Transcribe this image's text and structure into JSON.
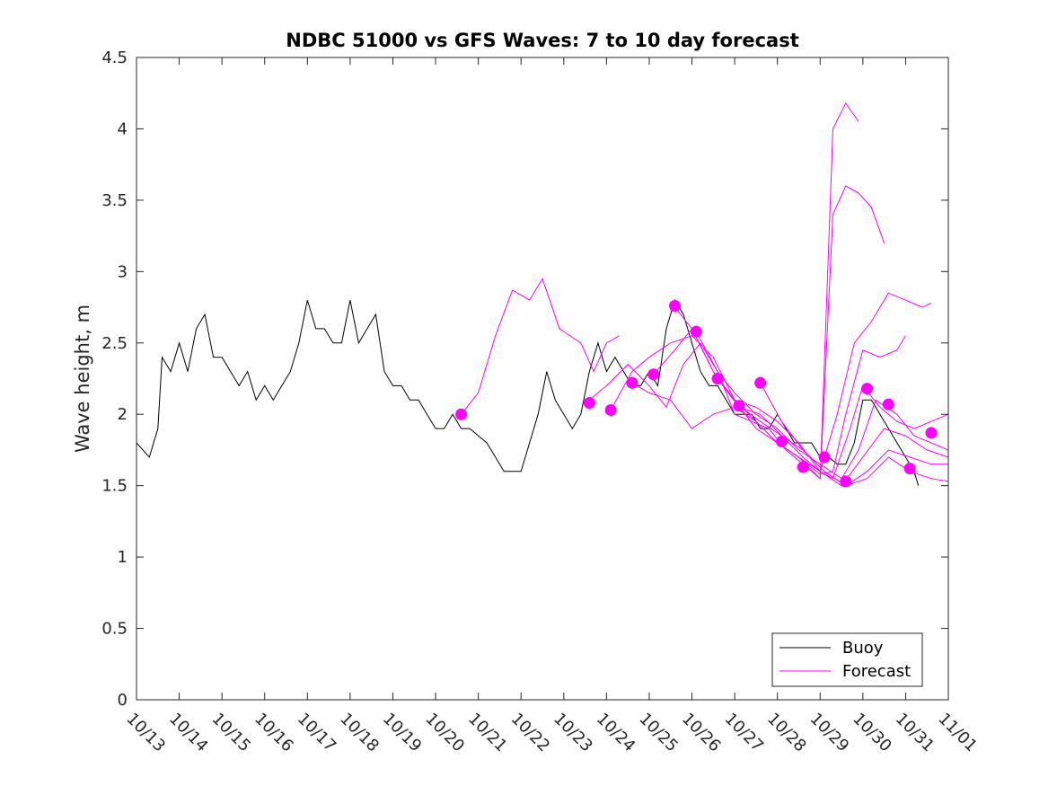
{
  "chart_data": {
    "type": "line",
    "title": "NDBC 51000 vs GFS Waves: 7 to 10 day forecast",
    "xlabel": "",
    "ylabel": "Wave height, m",
    "xlim": [
      13,
      32
    ],
    "ylim": [
      0,
      4.5
    ],
    "y_ticks": [
      0,
      0.5,
      1,
      1.5,
      2,
      2.5,
      3,
      3.5,
      4,
      4.5
    ],
    "y_tick_labels": [
      "0",
      "0.5",
      "1",
      "1.5",
      "2",
      "2.5",
      "3",
      "3.5",
      "4",
      "4.5"
    ],
    "x_ticks": [
      13,
      14,
      15,
      16,
      17,
      18,
      19,
      20,
      21,
      22,
      23,
      24,
      25,
      26,
      27,
      28,
      29,
      30,
      31,
      32
    ],
    "x_tick_labels": [
      "10/13",
      "10/14",
      "10/15",
      "10/16",
      "10/17",
      "10/18",
      "10/19",
      "10/20",
      "10/21",
      "10/22",
      "10/23",
      "10/24",
      "10/25",
      "10/26",
      "10/27",
      "10/28",
      "10/29",
      "10/30",
      "10/31",
      "11/01"
    ],
    "x_units_note": "day of October (32 = 11/01)",
    "legend": {
      "position": "bottom-right",
      "entries": [
        "Buoy",
        "Forecast"
      ]
    },
    "colors": {
      "buoy": "#000000",
      "forecast": "#ff00ff",
      "axes": "#262626"
    },
    "series": [
      {
        "name": "Buoy",
        "x": [
          13.0,
          13.3,
          13.5,
          13.6,
          13.8,
          14.0,
          14.2,
          14.4,
          14.6,
          14.8,
          15.0,
          15.2,
          15.4,
          15.6,
          15.8,
          16.0,
          16.2,
          16.4,
          16.6,
          16.8,
          17.0,
          17.2,
          17.4,
          17.6,
          17.8,
          18.0,
          18.2,
          18.4,
          18.6,
          18.8,
          19.0,
          19.2,
          19.4,
          19.6,
          19.8,
          20.0,
          20.2,
          20.4,
          20.6,
          20.8,
          21.0,
          21.2,
          21.4,
          21.6,
          21.8,
          22.0,
          22.2,
          22.4,
          22.6,
          22.8,
          23.0,
          23.2,
          23.4,
          23.6,
          23.8,
          24.0,
          24.2,
          24.4,
          24.6,
          24.8,
          25.0,
          25.2,
          25.4,
          25.6,
          25.8,
          26.0,
          26.2,
          26.4,
          26.6,
          26.8,
          27.0,
          27.2,
          27.4,
          27.6,
          27.8,
          28.0,
          28.2,
          28.4,
          28.6,
          28.8,
          29.0,
          29.2,
          29.4,
          29.6,
          29.8,
          30.0,
          30.2,
          30.4,
          30.6,
          30.8,
          31.0,
          31.2,
          31.3
        ],
        "y": [
          1.8,
          1.7,
          1.9,
          2.4,
          2.3,
          2.5,
          2.3,
          2.6,
          2.7,
          2.4,
          2.4,
          2.3,
          2.2,
          2.3,
          2.1,
          2.2,
          2.1,
          2.2,
          2.3,
          2.5,
          2.8,
          2.6,
          2.6,
          2.5,
          2.5,
          2.8,
          2.5,
          2.6,
          2.7,
          2.3,
          2.2,
          2.2,
          2.1,
          2.1,
          2.0,
          1.9,
          1.9,
          2.0,
          1.9,
          1.9,
          1.85,
          1.8,
          1.7,
          1.6,
          1.6,
          1.6,
          1.8,
          2.0,
          2.3,
          2.1,
          2.0,
          1.9,
          2.0,
          2.3,
          2.5,
          2.3,
          2.4,
          2.3,
          2.2,
          2.2,
          2.3,
          2.2,
          2.6,
          2.8,
          2.7,
          2.5,
          2.3,
          2.2,
          2.2,
          2.1,
          2.0,
          2.0,
          2.0,
          1.9,
          1.9,
          2.0,
          1.9,
          1.8,
          1.8,
          1.8,
          1.7,
          1.7,
          1.65,
          1.65,
          1.8,
          2.1,
          2.1,
          2.0,
          1.9,
          1.8,
          1.7,
          1.6,
          1.5
        ]
      },
      {
        "name": "Forecast",
        "runs": [
          {
            "x": [
              20.6,
              21.0,
              21.4,
              21.8,
              22.2,
              22.5,
              22.9,
              23.4,
              23.7,
              24.0,
              24.3
            ],
            "y": [
              2.0,
              2.15,
              2.55,
              2.87,
              2.8,
              2.95,
              2.6,
              2.5,
              2.3,
              2.5,
              2.55
            ]
          },
          {
            "x": [
              23.6,
              24.0,
              24.5,
              25.0,
              25.4,
              25.8,
              26.2,
              26.6,
              27.0,
              27.4,
              27.8,
              28.2,
              28.6,
              29.0,
              29.3,
              29.6,
              29.9
            ],
            "y": [
              2.1,
              2.2,
              2.35,
              2.2,
              2.05,
              2.35,
              2.5,
              2.3,
              2.0,
              1.95,
              1.9,
              1.75,
              1.65,
              1.55,
              4.0,
              4.18,
              4.05
            ]
          },
          {
            "x": [
              24.1,
              24.6,
              25.0,
              25.5,
              26.0,
              26.5,
              27.0,
              27.5,
              28.0,
              28.5,
              29.0,
              29.3,
              29.6,
              29.9,
              30.2,
              30.5
            ],
            "y": [
              2.03,
              2.3,
              2.4,
              2.5,
              2.55,
              2.4,
              2.1,
              1.95,
              1.8,
              1.7,
              1.55,
              3.4,
              3.6,
              3.55,
              3.45,
              3.2
            ]
          },
          {
            "x": [
              24.6,
              25.0,
              25.5,
              26.0,
              26.5,
              27.0,
              27.5,
              28.0,
              28.5,
              29.0,
              29.4,
              29.8,
              30.2,
              30.6,
              31.0,
              31.4,
              31.6
            ],
            "y": [
              2.22,
              2.15,
              2.1,
              1.9,
              2.0,
              2.05,
              1.95,
              1.8,
              1.7,
              1.6,
              2.0,
              2.5,
              2.65,
              2.85,
              2.8,
              2.75,
              2.78
            ]
          },
          {
            "x": [
              25.1,
              25.6,
              26.0,
              26.5,
              27.0,
              27.5,
              28.0,
              28.5,
              29.0,
              29.3,
              29.6,
              30.0,
              30.4,
              30.8,
              31.0
            ],
            "y": [
              2.28,
              2.45,
              2.6,
              2.3,
              2.1,
              1.9,
              1.8,
              1.7,
              1.58,
              1.6,
              2.0,
              2.45,
              2.4,
              2.45,
              2.55
            ]
          },
          {
            "x": [
              25.6,
              26.0,
              26.5,
              27.0,
              27.5,
              28.0,
              28.5,
              29.0,
              29.3,
              29.7,
              30.0,
              30.4,
              30.8,
              31.2,
              31.6,
              32.0
            ],
            "y": [
              2.75,
              2.6,
              2.3,
              2.1,
              2.05,
              1.95,
              1.8,
              1.6,
              1.55,
              1.9,
              2.2,
              2.05,
              1.95,
              1.9,
              1.95,
              2.0
            ]
          },
          {
            "x": [
              26.1,
              26.6,
              27.0,
              27.5,
              28.0,
              28.5,
              29.0,
              29.5,
              29.9,
              30.3,
              30.8,
              31.2,
              31.6,
              32.0
            ],
            "y": [
              2.58,
              2.3,
              2.15,
              2.0,
              1.9,
              1.75,
              1.65,
              1.55,
              1.75,
              2.1,
              2.0,
              1.85,
              1.8,
              1.75
            ]
          },
          {
            "x": [
              26.6,
              27.1,
              27.6,
              28.1,
              28.6,
              29.0,
              29.5,
              30.0,
              30.5,
              31.0,
              31.5,
              32.0
            ],
            "y": [
              2.25,
              2.05,
              2.0,
              1.85,
              1.7,
              1.6,
              1.5,
              1.7,
              1.9,
              1.85,
              1.75,
              1.7
            ]
          },
          {
            "x": [
              27.1,
              27.6,
              28.1,
              28.6,
              29.1,
              29.6,
              30.1,
              30.6,
              31.1,
              31.6,
              32.0
            ],
            "y": [
              2.06,
              1.95,
              1.85,
              1.75,
              1.6,
              1.5,
              1.6,
              1.75,
              1.7,
              1.65,
              1.65
            ]
          },
          {
            "x": [
              27.6,
              28.1,
              28.6,
              29.1,
              29.6,
              30.1,
              30.6,
              31.1,
              31.6,
              32.0
            ],
            "y": [
              2.22,
              1.95,
              1.75,
              1.6,
              1.5,
              1.55,
              1.7,
              1.6,
              1.55,
              1.53
            ]
          }
        ],
        "markers": {
          "x": [
            20.6,
            23.6,
            24.1,
            24.6,
            25.1,
            25.6,
            26.1,
            26.6,
            27.1,
            27.6,
            28.1,
            28.6,
            29.1,
            29.6,
            30.1,
            30.6,
            31.1,
            31.6
          ],
          "y": [
            2.0,
            2.08,
            2.03,
            2.22,
            2.28,
            2.76,
            2.58,
            2.25,
            2.06,
            2.22,
            1.81,
            1.63,
            1.7,
            1.53,
            2.18,
            2.07,
            1.62,
            1.87
          ]
        }
      }
    ]
  }
}
